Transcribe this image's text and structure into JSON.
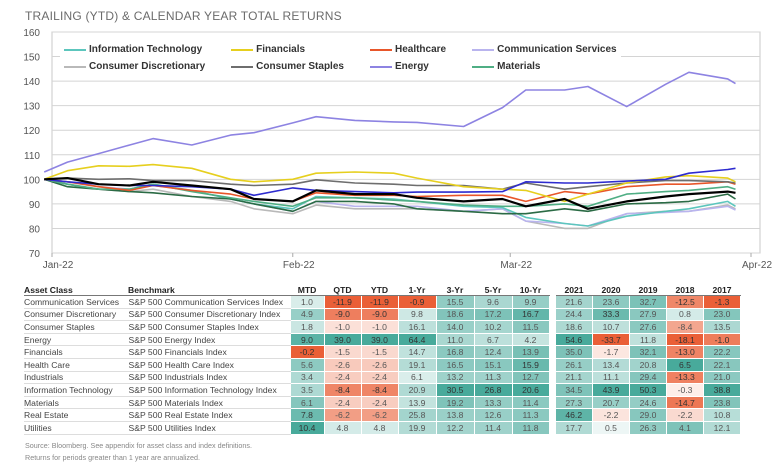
{
  "title": "TRAILING (YTD) & CALENDAR YEAR TOTAL RETURNS",
  "chart_data": {
    "type": "line",
    "title": "TRAILING (YTD) & CALENDAR YEAR TOTAL RETURNS",
    "ylim": [
      70,
      160
    ],
    "yticks": [
      70,
      80,
      90,
      100,
      110,
      120,
      130,
      140,
      150,
      160
    ],
    "xticks": [
      {
        "label": "Jan-22",
        "date": "2022-01-01"
      },
      {
        "label": "Feb-22",
        "date": "2022-02-01"
      },
      {
        "label": "Mar-22",
        "date": "2022-03-01"
      },
      {
        "label": "Apr-22",
        "date": "2022-04-01"
      }
    ],
    "xlim": [
      "2022-01-01",
      "2022-04-01"
    ],
    "grid": true,
    "legend_position": "top",
    "x": [
      "2021-12-31",
      "2022-01-03",
      "2022-01-07",
      "2022-01-11",
      "2022-01-14",
      "2022-01-19",
      "2022-01-24",
      "2022-01-27",
      "2022-02-01",
      "2022-02-04",
      "2022-02-09",
      "2022-02-14",
      "2022-02-17",
      "2022-02-23",
      "2022-02-28",
      "2022-03-03",
      "2022-03-08",
      "2022-03-11",
      "2022-03-16",
      "2022-03-21",
      "2022-03-24",
      "2022-03-29",
      "2022-03-30"
    ],
    "series": [
      {
        "name": "Consumer Discretionary",
        "color": "#b9b9b9",
        "values": [
          100,
          98,
          96,
          95,
          96,
          93,
          91,
          88,
          86,
          89.5,
          88,
          88,
          88,
          87,
          88,
          83,
          80,
          80,
          86,
          87,
          87,
          89.5,
          88
        ]
      },
      {
        "name": "Communication Services",
        "color": "#b9b4ee",
        "values": [
          100,
          99,
          97,
          96,
          97.5,
          95.5,
          92,
          90,
          87,
          91,
          89,
          89,
          89,
          87,
          88,
          83,
          82,
          81,
          86,
          86.5,
          87,
          89,
          87.5
        ]
      },
      {
        "name": "Information Technology",
        "color": "#5cc6bd",
        "values": [
          100,
          98,
          96,
          96,
          98,
          95.5,
          92,
          90,
          88,
          93,
          92.5,
          92,
          91,
          89,
          88.5,
          84.5,
          82,
          81,
          85,
          87,
          88,
          91,
          89
        ]
      },
      {
        "name": "",
        "color": "#2b6b45",
        "values": [
          100,
          97,
          96,
          95,
          94.5,
          93,
          92,
          90,
          87,
          91,
          91,
          90,
          88,
          87,
          86,
          86,
          88,
          87,
          90,
          90.5,
          91,
          94,
          92
        ]
      },
      {
        "name": "Materials",
        "color": "#4fae84",
        "values": [
          100,
          98,
          96,
          96,
          98,
          95,
          92.5,
          91,
          89,
          92.5,
          92.5,
          91.5,
          91,
          89.5,
          89,
          89,
          90,
          89,
          94,
          95,
          95.5,
          97,
          96
        ]
      },
      {
        "name": "Healthcare",
        "color": "#e8562a",
        "values": [
          100,
          99,
          97,
          95.5,
          97.5,
          95.5,
          94,
          92,
          91,
          94.5,
          93.5,
          93.5,
          93,
          93.5,
          93.5,
          91,
          95,
          94,
          97,
          98,
          98,
          99,
          98
        ]
      },
      {
        "name": "Consumer Staples",
        "color": "#6e6e6e",
        "values": [
          100,
          100.5,
          100,
          100.2,
          99.5,
          99.5,
          98,
          97.5,
          98,
          99.8,
          98.5,
          98,
          97.5,
          97.5,
          96,
          98.5,
          96,
          97,
          98.5,
          99.5,
          99.5,
          99,
          98.5
        ]
      },
      {
        "name": "Financials",
        "color": "#e6cf1e",
        "values": [
          100,
          103.5,
          105.5,
          105.3,
          106,
          104.5,
          100,
          99,
          100,
          102.5,
          103,
          102.5,
          100.5,
          97,
          96,
          95.5,
          91,
          94,
          98.5,
          101,
          101.5,
          100.5,
          99
        ]
      },
      {
        "name": "",
        "color": "#2d2bcf",
        "values": [
          100,
          99,
          98,
          97.5,
          97.5,
          97,
          96,
          93.5,
          96.5,
          95.5,
          95,
          94.5,
          94.8,
          94.8,
          95,
          99,
          98.5,
          98.5,
          99.3,
          100,
          102.5,
          104,
          104.5
        ]
      },
      {
        "name": "",
        "color": "#000000",
        "values": [
          100,
          100.5,
          98,
          97.5,
          99,
          97.5,
          96,
          92,
          91,
          95.5,
          94,
          94,
          92.5,
          91,
          92,
          89,
          92,
          88,
          91,
          93,
          94,
          95,
          94.5
        ]
      },
      {
        "name": "Energy",
        "color": "#8d83e2",
        "values": [
          103,
          107,
          110.5,
          114,
          116.6,
          114,
          118,
          119,
          123,
          125.5,
          124,
          123.4,
          123.2,
          121.5,
          129.2,
          136.4,
          136.4,
          137.8,
          129.6,
          138.7,
          143.6,
          140.9,
          139
        ]
      }
    ]
  },
  "legend": [
    {
      "label": "Information Technology",
      "color": "#5cc6bd"
    },
    {
      "label": "Financials",
      "color": "#e6cf1e"
    },
    {
      "label": "Healthcare",
      "color": "#e8562a"
    },
    {
      "label": "Communication Services",
      "color": "#b9b4ee"
    },
    {
      "label": "Consumer Discretionary",
      "color": "#b9b9b9"
    },
    {
      "label": "Consumer Staples",
      "color": "#6e6e6e"
    },
    {
      "label": "Energy",
      "color": "#8d83e2"
    },
    {
      "label": "Materials",
      "color": "#4fae84"
    }
  ],
  "table": {
    "headers": [
      "Asset Class",
      "Benchmark",
      "MTD",
      "QTD",
      "YTD",
      "1-Yr",
      "3-Yr",
      "5-Yr",
      "10-Yr",
      "2021",
      "2020",
      "2019",
      "2018",
      "2017"
    ],
    "colors": {
      "negative": "#e9572c",
      "positive": "#3ea596"
    },
    "rows": [
      [
        "Communication Services",
        "S&P 500 Communication Services Index",
        1.0,
        -11.9,
        -11.9,
        -0.9,
        15.5,
        9.6,
        9.9,
        21.6,
        23.6,
        32.7,
        -12.5,
        -1.3
      ],
      [
        "Consumer Discretionary",
        "S&P 500 Consumer Discretionary Index",
        4.9,
        -9.0,
        -9.0,
        9.8,
        18.6,
        17.2,
        16.7,
        24.4,
        33.3,
        27.9,
        0.8,
        23.0
      ],
      [
        "Consumer Staples",
        "S&P 500 Consumer Staples Index",
        1.8,
        -1.0,
        -1.0,
        16.1,
        14.0,
        10.2,
        11.5,
        18.6,
        10.7,
        27.6,
        -8.4,
        13.5
      ],
      [
        "Energy",
        "S&P 500 Energy Index",
        9.0,
        39.0,
        39.0,
        64.4,
        11.0,
        6.7,
        4.2,
        54.6,
        -33.7,
        11.8,
        -18.1,
        -1.0
      ],
      [
        "Financials",
        "S&P 500 Financials Index",
        -0.2,
        -1.5,
        -1.5,
        14.7,
        16.8,
        12.4,
        13.9,
        35.0,
        -1.7,
        32.1,
        -13.0,
        22.2
      ],
      [
        "Health Care",
        "S&P 500 Health Care Index",
        5.6,
        -2.6,
        -2.6,
        19.1,
        16.5,
        15.1,
        15.9,
        26.1,
        13.4,
        20.8,
        6.5,
        22.1
      ],
      [
        "Industrials",
        "S&P 500 Industrials Index",
        3.4,
        -2.4,
        -2.4,
        6.1,
        13.2,
        11.3,
        12.7,
        21.1,
        11.1,
        29.4,
        -13.3,
        21.0
      ],
      [
        "Information Technology",
        "S&P 500 Information Technology Index",
        3.5,
        -8.4,
        -8.4,
        20.9,
        30.5,
        26.8,
        20.6,
        34.5,
        43.9,
        50.3,
        -0.3,
        38.8
      ],
      [
        "Materials",
        "S&P 500 Materials Index",
        6.1,
        -2.4,
        -2.4,
        13.9,
        19.2,
        13.3,
        11.4,
        27.3,
        20.7,
        24.6,
        -14.7,
        23.8
      ],
      [
        "Real Estate",
        "S&P 500 Real Estate Index",
        7.8,
        -6.2,
        -6.2,
        25.8,
        13.8,
        12.6,
        11.3,
        46.2,
        -2.2,
        29.0,
        -2.2,
        10.8
      ],
      [
        "Utilities",
        "S&P 500 Utilities Index",
        10.4,
        4.8,
        4.8,
        19.9,
        12.2,
        11.4,
        11.8,
        17.7,
        0.5,
        26.3,
        4.1,
        12.1
      ]
    ]
  },
  "notes": [
    "Source: Bloomberg. See appendix for asset class and index definitions.",
    "Returns for periods greater than 1 year are annualized."
  ]
}
